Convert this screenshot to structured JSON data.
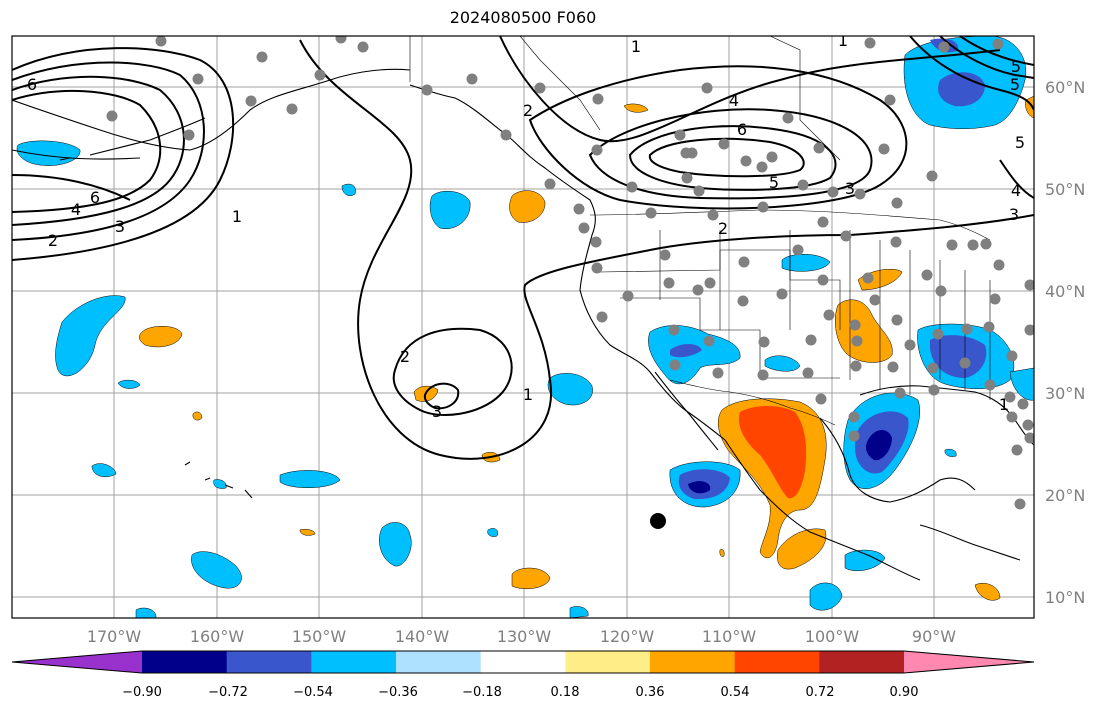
{
  "title": "2024080500 F060",
  "lon_labels": [
    "170°W",
    "160°W",
    "150°W",
    "140°W",
    "130°W",
    "120°W",
    "110°W",
    "100°W",
    "90°W"
  ],
  "lat_labels": [
    "60°N",
    "50°N",
    "40°N",
    "30°N",
    "20°N",
    "10°N"
  ],
  "colorbar": {
    "ticks": [
      "−0.90",
      "−0.72",
      "−0.54",
      "−0.36",
      "−0.18",
      "0.18",
      "0.36",
      "0.54",
      "0.72",
      "0.90"
    ],
    "colors": [
      "#9932cc",
      "#00008b",
      "#3a56cc",
      "#00bfff",
      "#aee0ff",
      "#ffffff",
      "#ffee88",
      "#ffa500",
      "#ff4500",
      "#b22222",
      "#ff88b0"
    ]
  },
  "contour_labels": [
    "6",
    "1",
    "4",
    "6",
    "3",
    "2",
    "1",
    "2",
    "1",
    "4",
    "6",
    "5",
    "3",
    "2",
    "2",
    "3",
    "1",
    "5",
    "5",
    "4",
    "3",
    "1",
    "5"
  ],
  "colors": {
    "neg_light": "#00bfff",
    "neg_mid": "#3a56cc",
    "neg_dark": "#00008b",
    "pos_light": "#ffa500",
    "pos_dark": "#ff4500",
    "station": "#808080",
    "grid": "#a0a0a0"
  }
}
